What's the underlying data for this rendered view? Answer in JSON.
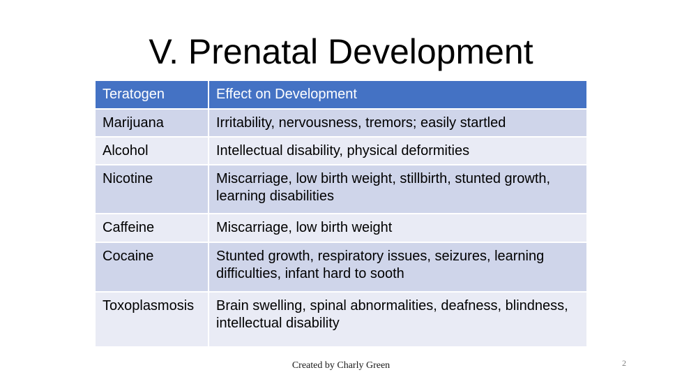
{
  "slide": {
    "title": "V. Prenatal Development",
    "footer": "Created by Charly Green",
    "page_number": "2"
  },
  "table": {
    "headers": [
      "Teratogen",
      "Effect on Development"
    ],
    "rows": [
      {
        "teratogen": "Marijuana",
        "effect": "Irritability, nervousness, tremors; easily startled"
      },
      {
        "teratogen": "Alcohol",
        "effect": "Intellectual disability, physical deformities"
      },
      {
        "teratogen": "Nicotine",
        "effect": "Miscarriage, low birth weight, stillbirth, stunted growth, learning disabilities"
      },
      {
        "teratogen": "Caffeine",
        "effect": "Miscarriage, low birth weight"
      },
      {
        "teratogen": "Cocaine",
        "effect": "Stunted growth, respiratory issues, seizures, learning difficulties, infant hard to sooth"
      },
      {
        "teratogen": "Toxoplasmosis",
        "effect": "Brain swelling, spinal abnormalities, deafness, blindness, intellectual disability"
      }
    ]
  },
  "colors": {
    "header_bg": "#4472C4",
    "header_text": "#FFFFFF",
    "band_dark": "#CFD5EA",
    "band_light": "#E9EBF5"
  }
}
